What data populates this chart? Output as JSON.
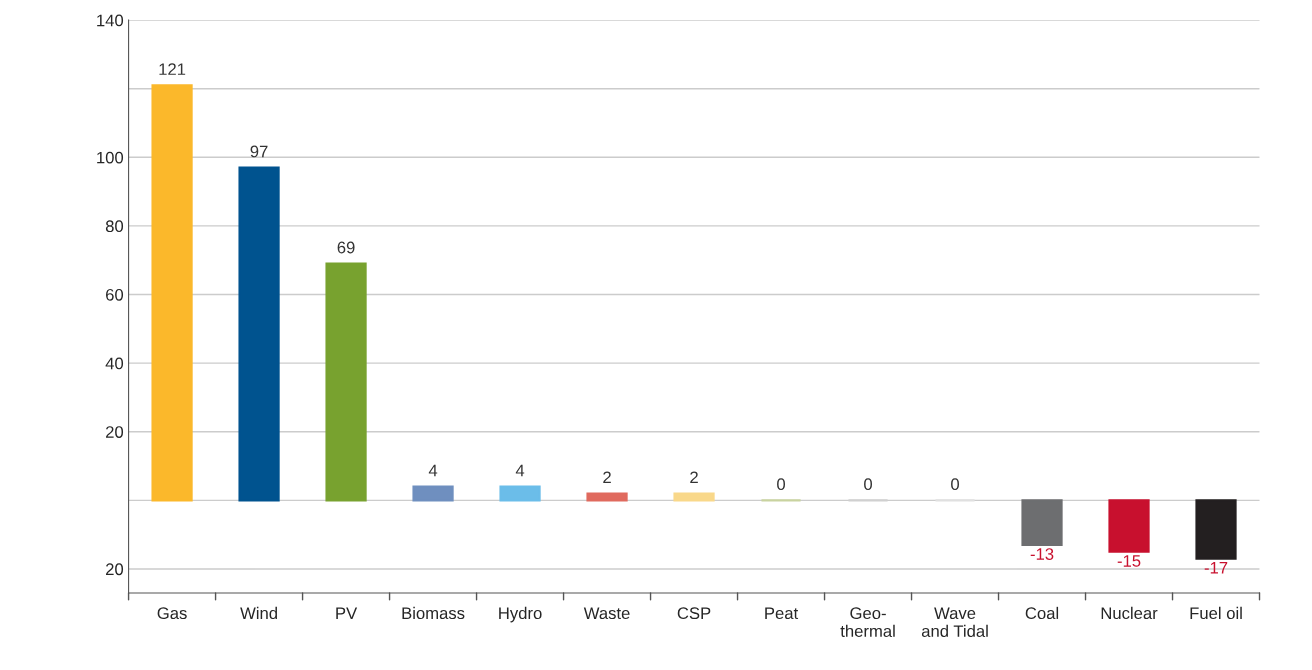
{
  "chart_data": {
    "type": "bar",
    "categories": [
      "Gas",
      "Wind",
      "PV",
      "Biomass",
      "Hydro",
      "Waste",
      "CSP",
      "Peat",
      "Geo-\nthermal",
      "Wave\nand Tidal",
      "Coal",
      "Nuclear",
      "Fuel oil"
    ],
    "values": [
      121,
      97,
      69,
      4,
      4,
      2,
      2,
      0,
      0,
      0,
      -13,
      -15,
      -17
    ],
    "colors": [
      "#fbb82b",
      "#00538f",
      "#78a22f",
      "#6f8fbf",
      "#6bbde9",
      "#e06a5e",
      "#f9d88a",
      "#c9d3a0",
      "#d0d0d0",
      "#e0e0e0",
      "#6d6e70",
      "#c8102e",
      "#231f20"
    ],
    "ylim": [
      -27,
      140
    ],
    "yticks": [
      {
        "value": -20,
        "label": "20"
      },
      {
        "value": 0,
        "label": null
      },
      20,
      40,
      60,
      80,
      100,
      {
        "value": 120,
        "label": null
      },
      140
    ],
    "grid": "y",
    "data_labels": true,
    "legend": false
  }
}
